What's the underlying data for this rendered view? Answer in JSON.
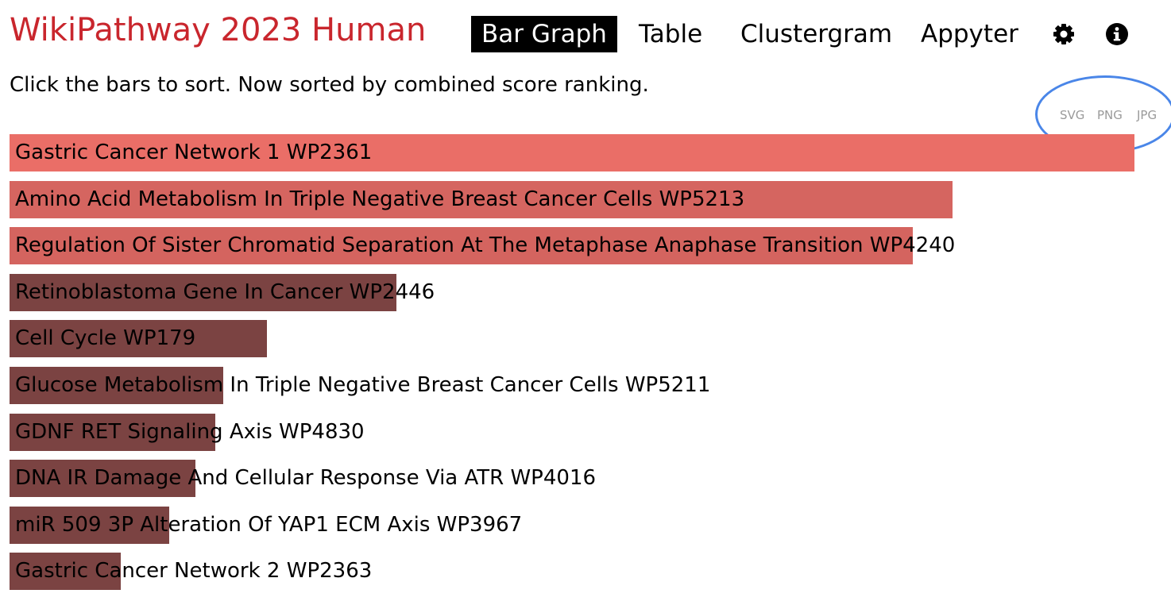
{
  "app": {
    "title": "WikiPathway 2023 Human"
  },
  "nav": {
    "tabs": [
      {
        "label": "Bar Graph",
        "active": true
      },
      {
        "label": "Table",
        "active": false
      },
      {
        "label": "Clustergram",
        "active": false
      },
      {
        "label": "Appyter",
        "active": false
      }
    ],
    "icons": [
      "gear-icon",
      "info-icon"
    ]
  },
  "instructions": "Click the bars to sort. Now sorted by combined score ranking.",
  "export": {
    "svg": "SVG",
    "png": "PNG",
    "jpg": "JPG"
  },
  "annotation": {
    "color": "#4a86e8",
    "shape": "ellipse",
    "target": "export buttons"
  },
  "chart_data": {
    "type": "bar",
    "orientation": "horizontal",
    "sorted_by": "combined score",
    "categories": [
      "Gastric Cancer Network 1 WP2361",
      "Amino Acid Metabolism In Triple Negative Breast Cancer Cells WP5213",
      "Regulation Of Sister Chromatid Separation At The Metaphase Anaphase Transition WP4240",
      "Retinoblastoma Gene In Cancer WP2446",
      "Cell Cycle WP179",
      "Glucose Metabolism In Triple Negative Breast Cancer Cells WP5211",
      "GDNF RET Signaling Axis WP4830",
      "DNA IR Damage And Cellular Response Via ATR WP4016",
      "miR 509 3P Alteration Of YAP1 ECM Axis WP3967",
      "Gastric Cancer Network 2 WP2363"
    ],
    "values": [
      1.0,
      0.838,
      0.803,
      0.344,
      0.229,
      0.19,
      0.183,
      0.165,
      0.142,
      0.099
    ],
    "colors": [
      "#ea6e67",
      "#d56560",
      "#d4645f",
      "#7b4342",
      "#7b4342",
      "#7b4342",
      "#7b4342",
      "#7b4342",
      "#7b4342",
      "#7b4342"
    ]
  }
}
